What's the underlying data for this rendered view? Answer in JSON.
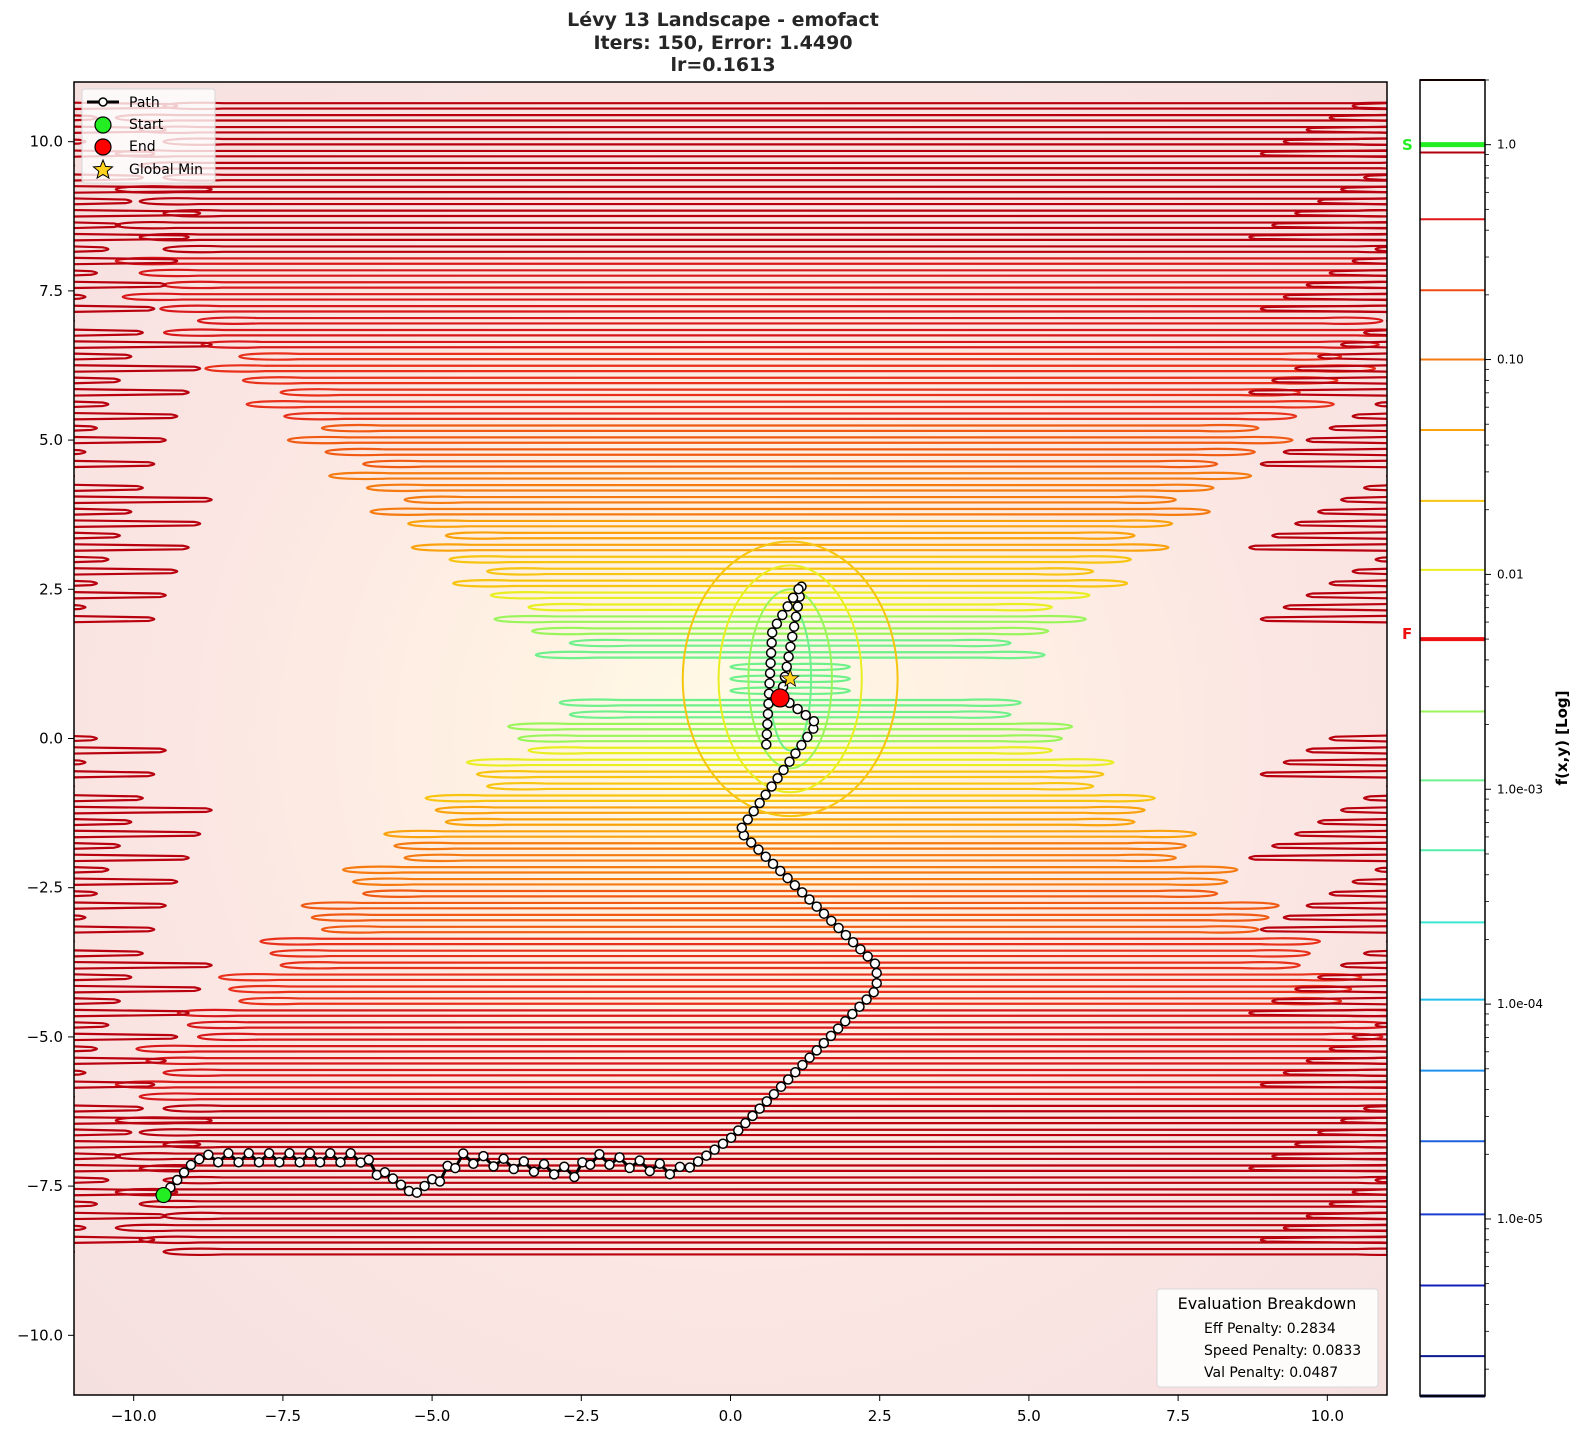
{
  "title": {
    "line1": "Lévy 13 Landscape - emofact",
    "line2": "Iters: 150, Error: 1.4490",
    "line3": "lr=0.1613"
  },
  "axes": {
    "x_ticks": [
      "−10.0",
      "−7.5",
      "−5.0",
      "−2.5",
      "0.0",
      "2.5",
      "5.0",
      "7.5",
      "10.0"
    ],
    "x_values": [
      -10,
      -7.5,
      -5,
      -2.5,
      0,
      2.5,
      5,
      7.5,
      10
    ],
    "y_ticks": [
      "10.0",
      "7.5",
      "5.0",
      "2.5",
      "0.0",
      "−2.5",
      "−5.0",
      "−7.5",
      "−10.0"
    ],
    "y_values": [
      10,
      7.5,
      5,
      2.5,
      0,
      -2.5,
      -5,
      -7.5,
      -10
    ],
    "xlim": [
      -11,
      11
    ],
    "ylim": [
      -11,
      11
    ]
  },
  "legend": {
    "items": [
      {
        "label": "Path",
        "marker": "line-circle"
      },
      {
        "label": "Start",
        "marker": "green-circle"
      },
      {
        "label": "End",
        "marker": "red-circle"
      },
      {
        "label": "Global Min",
        "marker": "gold-star"
      }
    ]
  },
  "evaluation": {
    "title": "Evaluation Breakdown",
    "lines": [
      "Eff Penalty: 0.2834",
      "Speed Penalty: 0.0833",
      "Val Penalty: 0.0487"
    ]
  },
  "colorbar": {
    "label": "f(x,y) [Log]",
    "tick_labels": [
      "1.0",
      "0.10",
      "0.01",
      "1.0e-03",
      "1.0e-04",
      "1.0e-05"
    ],
    "tick_values": [
      1.0,
      0.1,
      0.01,
      0.001,
      0.0001,
      1e-05
    ],
    "start_marker": "S",
    "final_marker": "F",
    "start_color": "#22ee22",
    "final_color": "#ee1111"
  },
  "chart_data": {
    "type": "contour",
    "title": "Lévy 13 Landscape - emofact / Iters: 150, Error: 1.4490 / lr=0.1613",
    "xlabel": "",
    "ylabel": "",
    "xlim": [
      -11,
      11
    ],
    "ylim": [
      -11,
      11
    ],
    "colorbar_label": "f(x,y) [Log]",
    "colorbar_scale": "log",
    "colorbar_range": [
      1.5e-06,
      2.0
    ],
    "start": {
      "x": -9.5,
      "y": -7.65
    },
    "end": {
      "x": 0.83,
      "y": 0.68
    },
    "global_min": {
      "x": 1.0,
      "y": 1.0
    },
    "iterations": 150,
    "error": 1.449,
    "lr": 0.1613,
    "path_waypoints": [
      {
        "x": -9.5,
        "y": -7.65
      },
      {
        "x": -9.0,
        "y": -7.1
      },
      {
        "x": -8.7,
        "y": -6.95
      },
      {
        "x": -6.2,
        "y": -6.95
      },
      {
        "x": -5.3,
        "y": -7.65
      },
      {
        "x": -4.5,
        "y": -6.95
      },
      {
        "x": -2.6,
        "y": -7.2
      },
      {
        "x": -2.3,
        "y": -6.95
      },
      {
        "x": -0.7,
        "y": -7.2
      },
      {
        "x": 0.0,
        "y": -6.7
      },
      {
        "x": 2.45,
        "y": -4.2
      },
      {
        "x": 2.45,
        "y": -3.8
      },
      {
        "x": 0.15,
        "y": -1.55
      },
      {
        "x": 1.45,
        "y": 0.25
      },
      {
        "x": 0.85,
        "y": 0.7
      },
      {
        "x": 1.2,
        "y": 2.6
      },
      {
        "x": 0.7,
        "y": 1.8
      },
      {
        "x": 0.6,
        "y": -0.1
      }
    ],
    "legend": [
      "Path",
      "Start",
      "End",
      "Global Min"
    ],
    "legend_position": "upper left",
    "annotation_box": {
      "title": "Evaluation Breakdown",
      "Eff Penalty": 0.2834,
      "Speed Penalty": 0.0833,
      "Val Penalty": 0.0487,
      "position": "lower right"
    },
    "colorbar_markers": {
      "S": 1.0,
      "F": 0.005
    },
    "grid": false
  }
}
